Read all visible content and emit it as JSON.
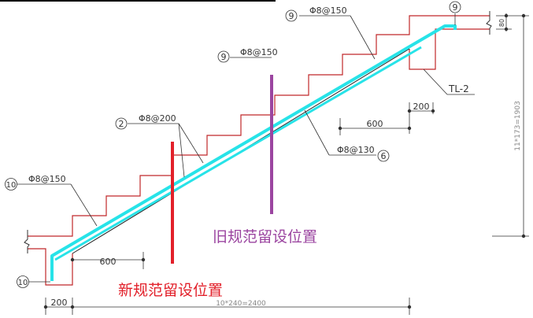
{
  "labels": {
    "top_mark": {
      "num": "9"
    },
    "upper_bar": {
      "num": "9",
      "spec": "Φ8@150"
    },
    "mid_bar": {
      "num": "9",
      "spec": "Φ8@150"
    },
    "distribution_bar": {
      "num": "2",
      "spec": "Φ8@200"
    },
    "bottom_bar": {
      "num": "6",
      "spec": "Φ8@130"
    },
    "lower_bar": {
      "num": "10",
      "spec": "Φ8@150"
    },
    "foot_bar": {
      "num": "10"
    },
    "beam": "TL-2"
  },
  "dimensions": {
    "top_200": "200",
    "top_600": "600",
    "bottom_600": "600",
    "bottom_200": "200",
    "run": "10*240=2400",
    "rise": "11*173=1903",
    "landing_thickness": "80"
  },
  "annotations": {
    "old_position": "旧规范留设位置",
    "new_position": "新规范留设位置"
  },
  "colors": {
    "concrete_outline": "#c0282a",
    "rebar": "#27e3e8",
    "old_marker": "#9b45a0",
    "new_marker": "#e2202a",
    "linework": "#333333"
  }
}
